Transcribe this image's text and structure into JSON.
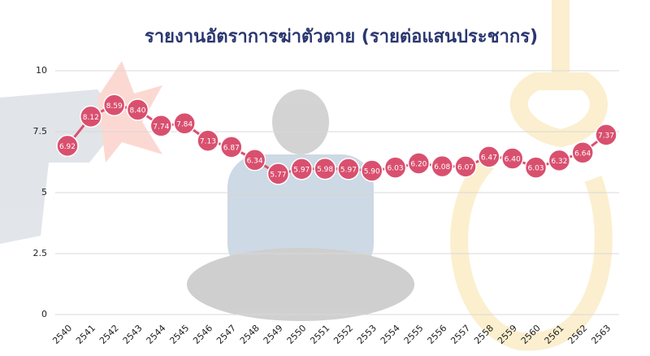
{
  "chart_data": {
    "type": "line",
    "title": "รายงานอัตราการฆ่าตัวตาย (รายต่อแสนประชากร)",
    "categories": [
      "2540",
      "2541",
      "2542",
      "2543",
      "2544",
      "2545",
      "2546",
      "2547",
      "2548",
      "2549",
      "2550",
      "2551",
      "2552",
      "2553",
      "2554",
      "2555",
      "2556",
      "2557",
      "2558",
      "2559",
      "2560",
      "2561",
      "2562",
      "2563"
    ],
    "values": [
      6.92,
      8.12,
      8.59,
      8.4,
      7.74,
      7.84,
      7.13,
      6.87,
      6.34,
      5.77,
      5.97,
      5.98,
      5.97,
      5.9,
      6.03,
      6.2,
      6.08,
      6.07,
      6.47,
      6.4,
      6.03,
      6.32,
      6.64,
      7.37
    ],
    "value_labels": [
      "6.92",
      "8.12",
      "8.59",
      "8.40",
      "7.74",
      "7.84",
      "7.13",
      "6.87",
      "6.34",
      "5.77",
      "5.97",
      "5.98",
      "5.97",
      "5.90",
      "6.03",
      "6.20",
      "6.08",
      "6.07",
      "6.47",
      "6.40",
      "6.03",
      "6.32",
      "6.64",
      "7.37"
    ],
    "color": "#d9506f",
    "ylim": [
      0,
      10
    ],
    "yticks": [
      0,
      2.5,
      5,
      7.5,
      10
    ],
    "grid": true
  }
}
